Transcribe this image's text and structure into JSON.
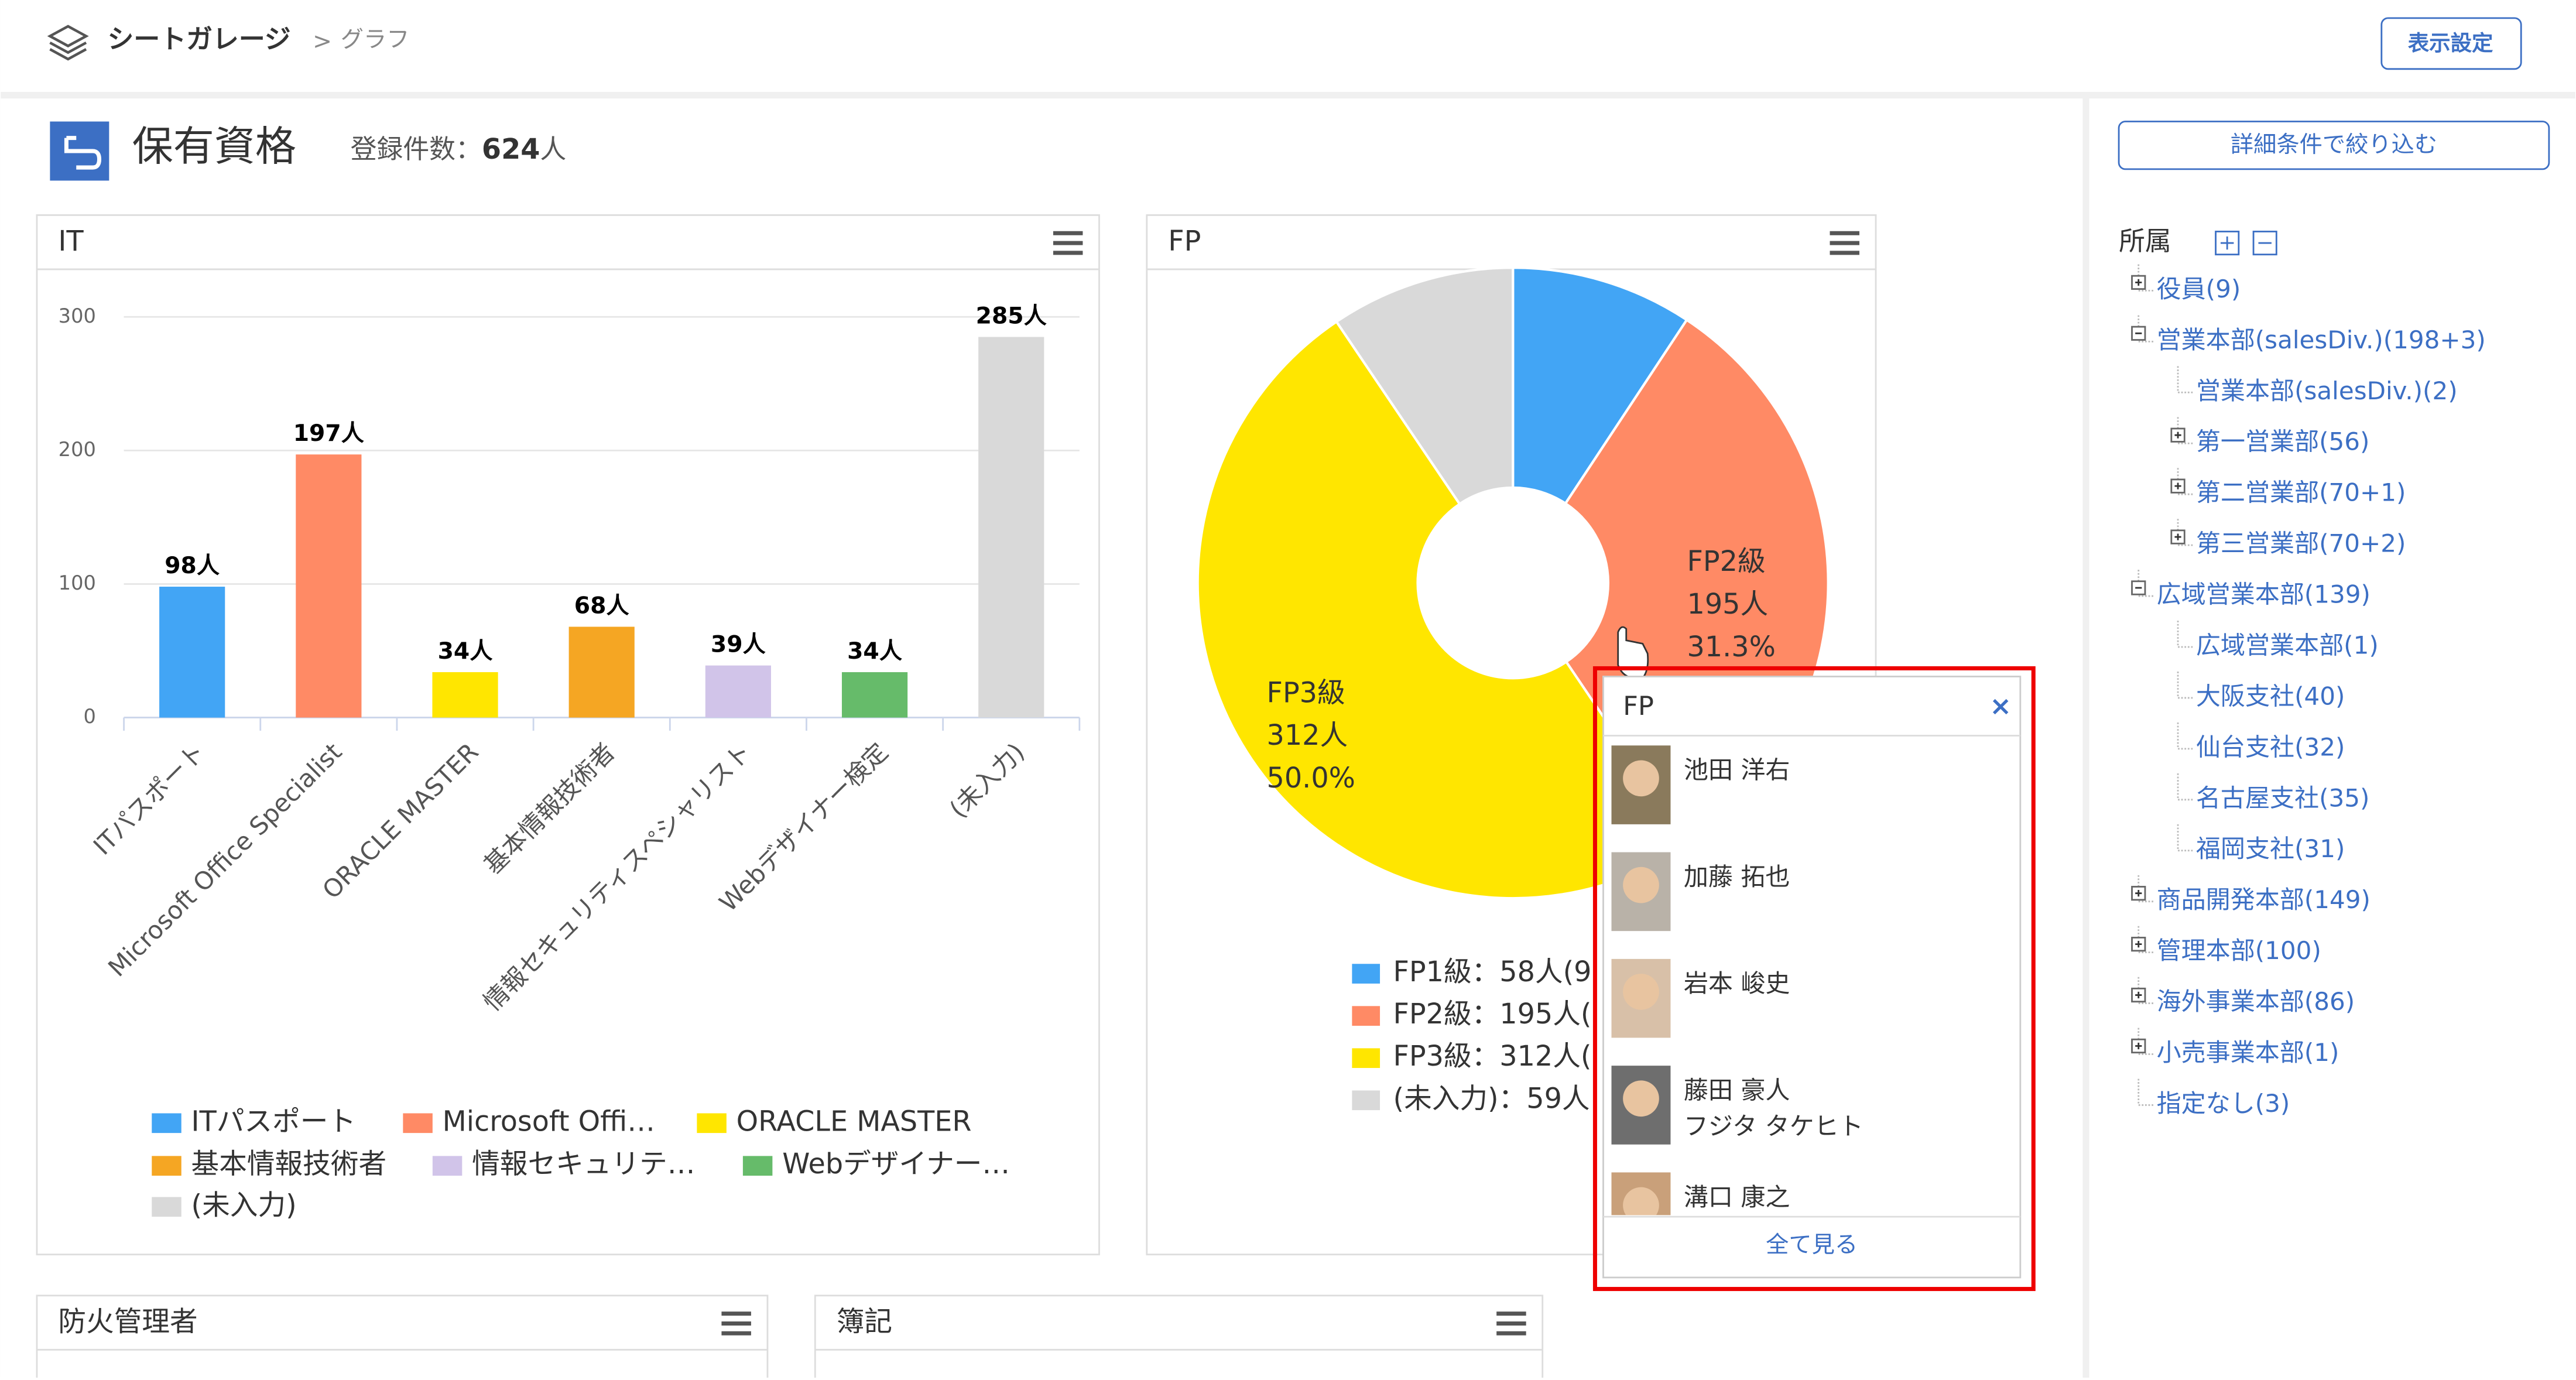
{
  "header": {
    "app": "シートガレージ",
    "separator": ">",
    "page": "グラフ",
    "settings_button": "表示設定"
  },
  "page": {
    "title": "保有資格",
    "count_label": "登録件数：",
    "count": "624",
    "count_unit": "人"
  },
  "chart_data": [
    {
      "type": "bar",
      "title": "IT",
      "categories": [
        "ITパスポート",
        "Microsoft Office Specialist",
        "ORACLE MASTER",
        "基本情報技術者",
        "情報セキュリティスペシャリスト",
        "Webデザイナー検定",
        "(未入力)"
      ],
      "values": [
        98,
        197,
        34,
        68,
        39,
        34,
        285
      ],
      "value_labels": [
        "98人",
        "197人",
        "34人",
        "68人",
        "39人",
        "34人",
        "285人"
      ],
      "colors": [
        "#42a5f5",
        "#ff8a65",
        "#ffe600",
        "#f5a623",
        "#d1c4e9",
        "#66bb6a",
        "#d9d9d9"
      ],
      "legend": [
        "ITパスポート",
        "Microsoft Offi…",
        "ORACLE MASTER",
        "基本情報技術者",
        "情報セキュリテ…",
        "Webデザイナー…",
        "(未入力)"
      ],
      "ylim": [
        0,
        300
      ],
      "yticks": [
        0,
        100,
        200,
        300
      ],
      "grid": true
    },
    {
      "type": "pie",
      "title": "FP",
      "categories": [
        "FP1級",
        "FP2級",
        "FP3級",
        "(未入力)"
      ],
      "values": [
        58,
        195,
        312,
        59
      ],
      "value_labels": [
        null,
        "195人",
        "312人",
        null
      ],
      "percent_labels": [
        null,
        "31.3%",
        "50.0%",
        null
      ],
      "colors": [
        "#42a5f5",
        "#ff8a65",
        "#ffe600",
        "#d9d9d9"
      ],
      "legend": [
        "FP1級：58人(9",
        "FP2級：195人(",
        "FP3級：312人(",
        "(未入力)：59人"
      ]
    }
  ],
  "panels": [
    "防火管理者",
    "簿記"
  ],
  "popup": {
    "title": "FP",
    "close": "×",
    "people": [
      {
        "name": "池田 洋右"
      },
      {
        "name": "加藤 拓也"
      },
      {
        "name": "岩本 峻史"
      },
      {
        "name": "藤田 豪人",
        "kana": "フジタ タケヒト"
      },
      {
        "name": "溝口 康之"
      }
    ],
    "more": "全て見る"
  },
  "sidebar": {
    "filter_button": "詳細条件で絞り込む",
    "section": "所属",
    "tree": [
      {
        "label": "役員(9)",
        "collapsed": true
      },
      {
        "label": "営業本部(salesDiv.)(198+3)",
        "children": [
          {
            "label": "営業本部(salesDiv.)(2)"
          },
          {
            "label": "第一営業部(56)",
            "collapsed": true
          },
          {
            "label": "第二営業部(70+1)",
            "collapsed": true
          },
          {
            "label": "第三営業部(70+2)",
            "collapsed": true
          }
        ]
      },
      {
        "label": "広域営業本部(139)",
        "children": [
          {
            "label": "広域営業本部(1)"
          },
          {
            "label": "大阪支社(40)"
          },
          {
            "label": "仙台支社(32)"
          },
          {
            "label": "名古屋支社(35)"
          },
          {
            "label": "福岡支社(31)"
          }
        ]
      },
      {
        "label": "商品開発本部(149)",
        "collapsed": true
      },
      {
        "label": "管理本部(100)",
        "collapsed": true
      },
      {
        "label": "海外事業本部(86)",
        "collapsed": true
      },
      {
        "label": "小売事業本部(1)",
        "collapsed": true
      },
      {
        "label": "指定なし(3)"
      }
    ]
  }
}
